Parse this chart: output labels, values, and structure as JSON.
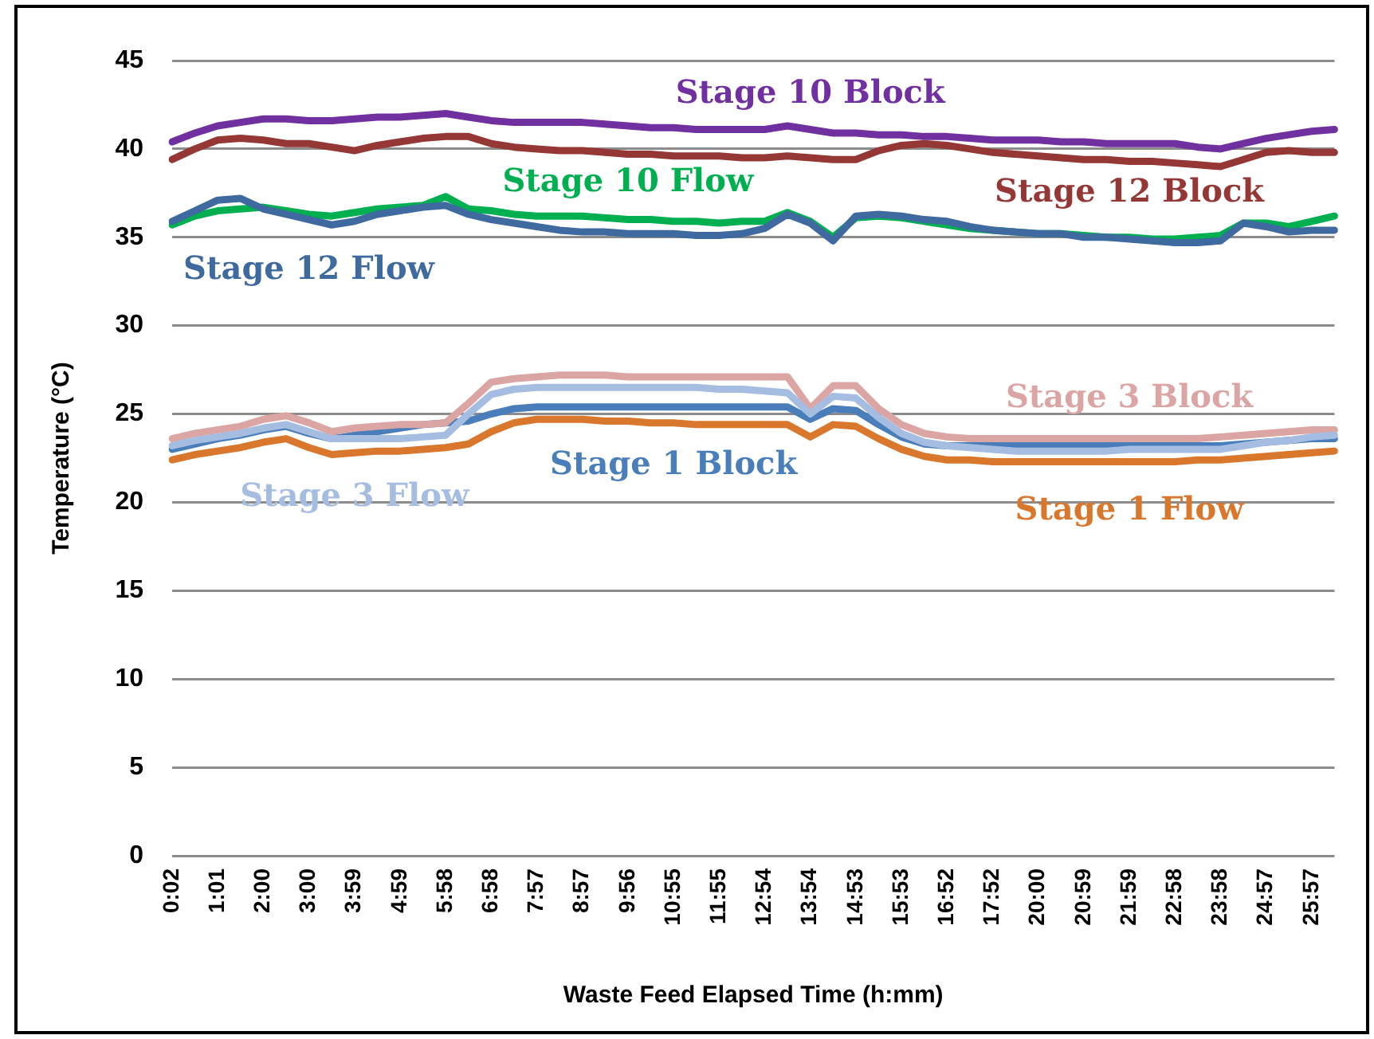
{
  "chart_data": {
    "type": "line",
    "xlabel": "Waste Feed Elapsed Time (h:mm)",
    "ylabel": "Temperature (°C)",
    "categories": [
      "0:02",
      null,
      "1:01",
      null,
      "2:00",
      null,
      "3:00",
      null,
      "3:59",
      null,
      "4:59",
      null,
      "5:58",
      null,
      "6:58",
      null,
      "7:57",
      null,
      "8:57",
      null,
      "9:56",
      null,
      "10:55",
      null,
      "11:55",
      null,
      "12:54",
      null,
      "13:54",
      null,
      "14:53",
      null,
      "15:53",
      null,
      "16:52",
      null,
      "17:52",
      null,
      "20:00",
      null,
      "20:59",
      null,
      "21:59",
      null,
      "22:58",
      null,
      "23:58",
      null,
      "24:57",
      null,
      "25:57",
      null
    ],
    "series": [
      {
        "name": "Stage 10 Block",
        "color": "#7030a0",
        "values": [
          40.4,
          40.9,
          41.3,
          41.5,
          41.7,
          41.7,
          41.6,
          41.6,
          41.7,
          41.8,
          41.8,
          41.9,
          42.0,
          41.8,
          41.6,
          41.5,
          41.5,
          41.5,
          41.5,
          41.4,
          41.3,
          41.2,
          41.2,
          41.1,
          41.1,
          41.1,
          41.1,
          41.3,
          41.1,
          40.9,
          40.9,
          40.8,
          40.8,
          40.7,
          40.7,
          40.6,
          40.5,
          40.5,
          40.5,
          40.4,
          40.4,
          40.3,
          40.3,
          40.3,
          40.3,
          40.1,
          40.0,
          40.3,
          40.6,
          40.8,
          41.0,
          41.1
        ]
      },
      {
        "name": "Stage 12 Block",
        "color": "#953735",
        "values": [
          39.4,
          40.0,
          40.5,
          40.6,
          40.5,
          40.3,
          40.3,
          40.1,
          39.9,
          40.2,
          40.4,
          40.6,
          40.7,
          40.7,
          40.3,
          40.1,
          40.0,
          39.9,
          39.9,
          39.8,
          39.7,
          39.7,
          39.6,
          39.6,
          39.6,
          39.5,
          39.5,
          39.6,
          39.5,
          39.4,
          39.4,
          39.9,
          40.2,
          40.3,
          40.2,
          40.0,
          39.8,
          39.7,
          39.6,
          39.5,
          39.4,
          39.4,
          39.3,
          39.3,
          39.2,
          39.1,
          39.0,
          39.4,
          39.8,
          39.9,
          39.8,
          39.8
        ]
      },
      {
        "name": "Stage 10 Flow",
        "color": "#00b050",
        "values": [
          35.7,
          36.2,
          36.5,
          36.6,
          36.7,
          36.5,
          36.3,
          36.2,
          36.4,
          36.6,
          36.7,
          36.8,
          37.3,
          36.6,
          36.5,
          36.3,
          36.2,
          36.2,
          36.2,
          36.1,
          36.0,
          36.0,
          35.9,
          35.9,
          35.8,
          35.9,
          35.9,
          36.4,
          35.9,
          35.0,
          36.1,
          36.2,
          36.1,
          35.9,
          35.7,
          35.5,
          35.4,
          35.3,
          35.2,
          35.2,
          35.1,
          35.0,
          35.0,
          34.9,
          34.9,
          35.0,
          35.1,
          35.8,
          35.8,
          35.6,
          35.9,
          36.2
        ]
      },
      {
        "name": "Stage 12 Flow",
        "color": "#3e6aa0",
        "values": [
          35.9,
          36.5,
          37.1,
          37.2,
          36.6,
          36.3,
          36.0,
          35.7,
          35.9,
          36.3,
          36.5,
          36.7,
          36.8,
          36.3,
          36.0,
          35.8,
          35.6,
          35.4,
          35.3,
          35.3,
          35.2,
          35.2,
          35.2,
          35.1,
          35.1,
          35.2,
          35.5,
          36.3,
          35.8,
          34.8,
          36.2,
          36.3,
          36.2,
          36.0,
          35.9,
          35.6,
          35.4,
          35.3,
          35.2,
          35.2,
          35.0,
          35.0,
          34.9,
          34.8,
          34.7,
          34.7,
          34.8,
          35.8,
          35.6,
          35.3,
          35.4,
          35.4
        ]
      },
      {
        "name": "Stage 1 Block",
        "color": "#4a7ebb",
        "values": [
          23.0,
          23.3,
          23.6,
          23.8,
          24.1,
          24.3,
          23.9,
          23.6,
          23.8,
          24.0,
          24.2,
          24.4,
          24.5,
          24.6,
          25.0,
          25.3,
          25.4,
          25.4,
          25.4,
          25.4,
          25.4,
          25.4,
          25.4,
          25.4,
          25.4,
          25.4,
          25.4,
          25.4,
          24.7,
          25.3,
          25.2,
          24.4,
          23.7,
          23.3,
          23.2,
          23.2,
          23.2,
          23.2,
          23.2,
          23.2,
          23.2,
          23.2,
          23.2,
          23.2,
          23.2,
          23.2,
          23.2,
          23.3,
          23.4,
          23.5,
          23.6,
          23.6
        ]
      },
      {
        "name": "Stage 3 Block",
        "color": "#dba5a4",
        "values": [
          23.6,
          23.9,
          24.1,
          24.3,
          24.7,
          24.9,
          24.5,
          24.0,
          24.2,
          24.3,
          24.4,
          24.4,
          24.5,
          25.6,
          26.8,
          27.0,
          27.1,
          27.2,
          27.2,
          27.2,
          27.1,
          27.1,
          27.1,
          27.1,
          27.1,
          27.1,
          27.1,
          27.1,
          25.3,
          26.6,
          26.6,
          25.3,
          24.4,
          23.9,
          23.7,
          23.6,
          23.6,
          23.6,
          23.6,
          23.6,
          23.6,
          23.6,
          23.6,
          23.6,
          23.6,
          23.6,
          23.7,
          23.8,
          23.9,
          24.0,
          24.1,
          24.1
        ]
      },
      {
        "name": "Stage 1 Flow",
        "color": "#d9772c",
        "values": [
          22.4,
          22.7,
          22.9,
          23.1,
          23.4,
          23.6,
          23.1,
          22.7,
          22.8,
          22.9,
          22.9,
          23.0,
          23.1,
          23.3,
          24.0,
          24.5,
          24.7,
          24.7,
          24.7,
          24.6,
          24.6,
          24.5,
          24.5,
          24.4,
          24.4,
          24.4,
          24.4,
          24.4,
          23.7,
          24.4,
          24.3,
          23.6,
          23.0,
          22.6,
          22.4,
          22.4,
          22.3,
          22.3,
          22.3,
          22.3,
          22.3,
          22.3,
          22.3,
          22.3,
          22.3,
          22.4,
          22.4,
          22.5,
          22.6,
          22.7,
          22.8,
          22.9
        ]
      },
      {
        "name": "Stage 3 Flow",
        "color": "#a5bde0",
        "values": [
          23.2,
          23.5,
          23.7,
          23.9,
          24.2,
          24.4,
          24.0,
          23.6,
          23.6,
          23.6,
          23.6,
          23.7,
          23.8,
          25.0,
          26.1,
          26.4,
          26.5,
          26.5,
          26.5,
          26.5,
          26.5,
          26.5,
          26.5,
          26.5,
          26.4,
          26.4,
          26.3,
          26.2,
          25.0,
          26.0,
          25.9,
          24.8,
          23.9,
          23.4,
          23.2,
          23.1,
          23.0,
          22.9,
          22.9,
          22.9,
          22.9,
          22.9,
          23.0,
          23.0,
          23.0,
          23.0,
          23.0,
          23.2,
          23.4,
          23.5,
          23.7,
          23.8
        ]
      }
    ],
    "ylim": [
      0,
      45
    ],
    "yticks": [
      0,
      5,
      10,
      15,
      20,
      25,
      30,
      35,
      40,
      45
    ],
    "grid": "y"
  }
}
